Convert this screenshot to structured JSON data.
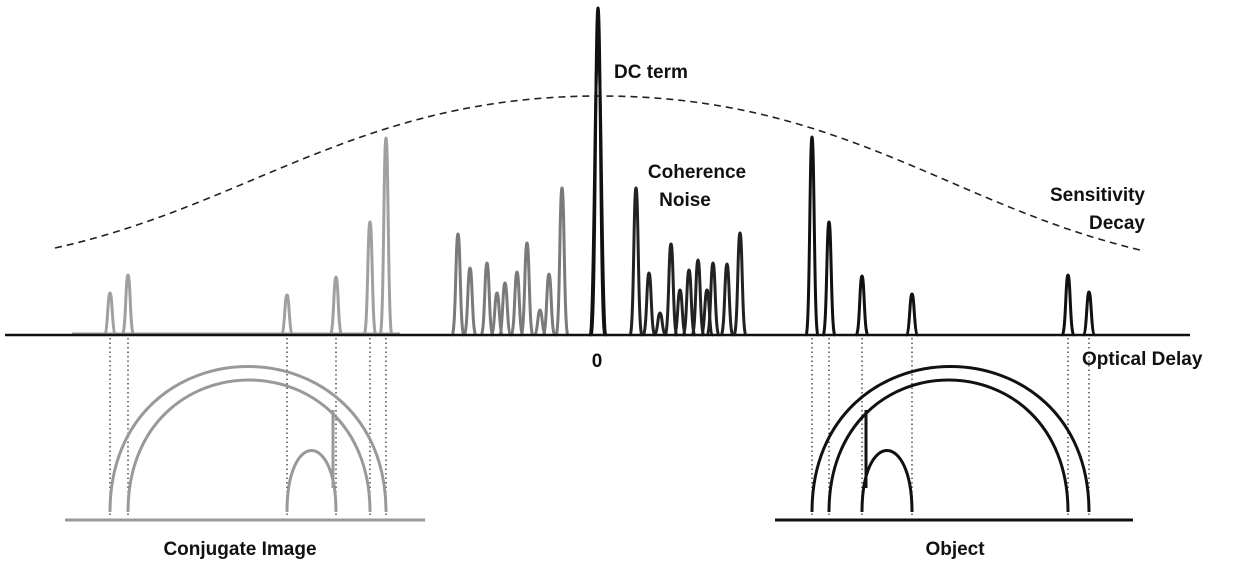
{
  "labels": {
    "dc_term": "DC term",
    "coherence_noise": [
      "Coherence",
      "Noise"
    ],
    "sensitivity_decay": [
      "Sensitivity",
      "Decay"
    ],
    "optical_delay": "Optical Delay",
    "zero": "0",
    "conjugate_image": "Conjugate Image",
    "object": "Object"
  }
}
